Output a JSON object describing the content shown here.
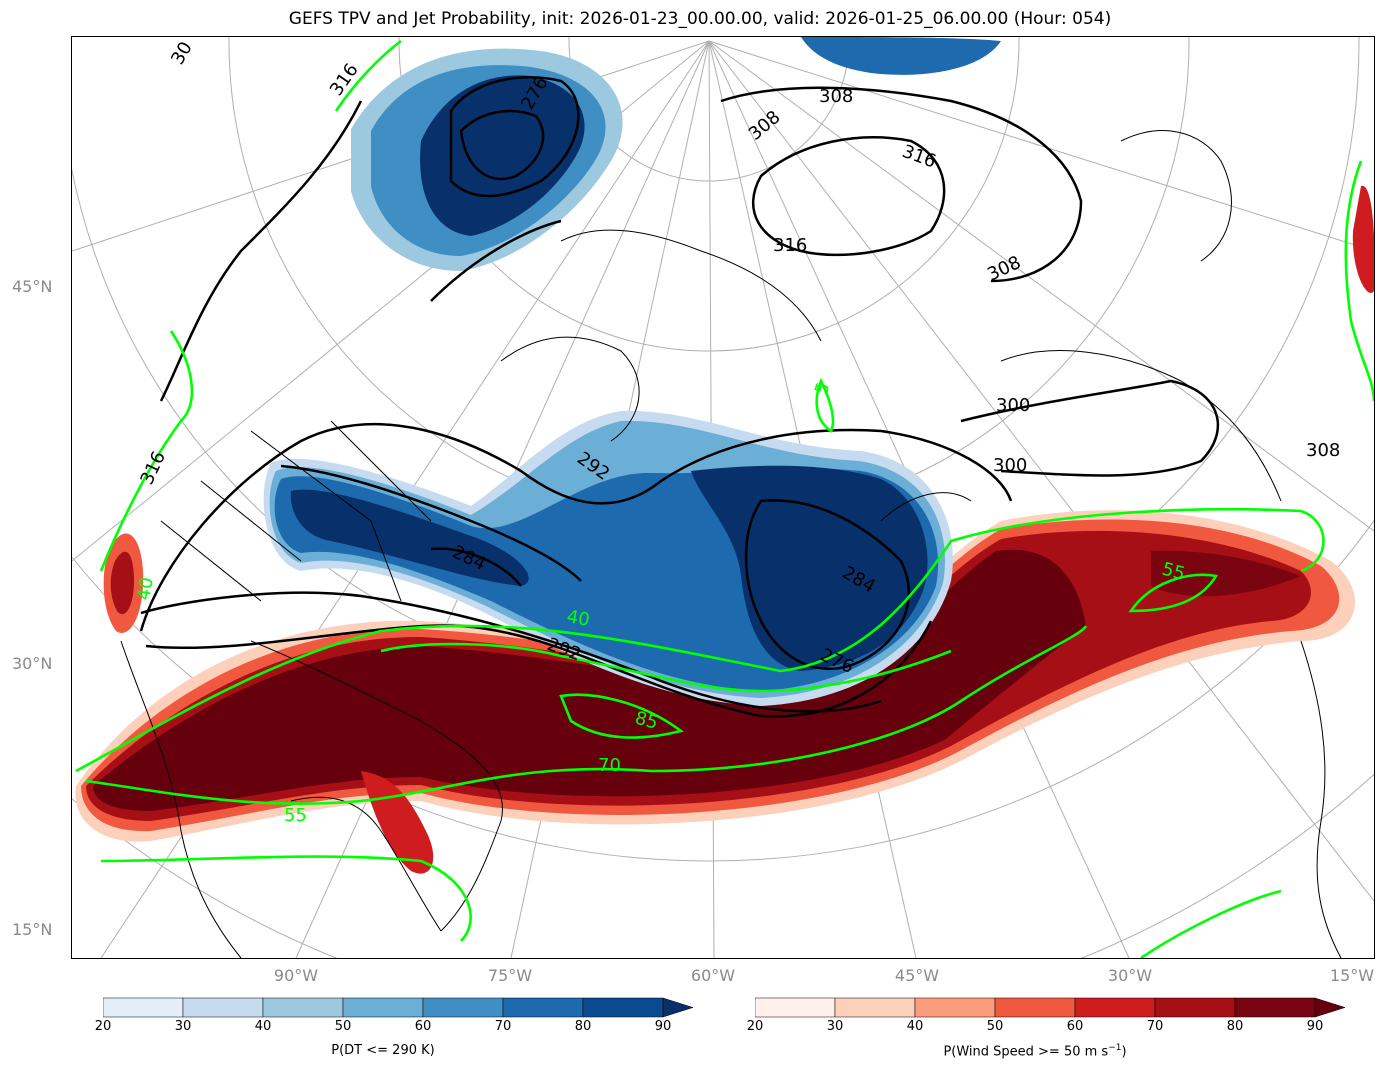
{
  "title": "GEFS TPV and Jet Probability, init: 2026-01-23_00.00.00, valid: 2026-01-25_06.00.00 (Hour: 054)",
  "latitude_labels": [
    "45°N",
    "30°N",
    "15°N"
  ],
  "longitude_labels": [
    "90°W",
    "75°W",
    "60°W",
    "45°W",
    "30°W",
    "15°W"
  ],
  "theta_contour_labels": [
    "316",
    "308",
    "316",
    "316",
    "308",
    "308",
    "300",
    "300",
    "308",
    "284",
    "276",
    "284",
    "292",
    "276",
    "292",
    "316",
    "30"
  ],
  "jet_contour_labels": [
    "40",
    "85",
    "70",
    "55",
    "55",
    "40",
    "5"
  ],
  "colorbar_tpv": {
    "label": "P(DT <= 290 K)",
    "ticks": [
      "20",
      "30",
      "40",
      "50",
      "60",
      "70",
      "80",
      "90"
    ],
    "colors": [
      "#e3eef8",
      "#c6dbef",
      "#9dc9e0",
      "#6baed6",
      "#3f8fc5",
      "#1d6aaf",
      "#0a4a90"
    ],
    "extend_color": "#08306b"
  },
  "colorbar_jet": {
    "label_text": "P(Wind Speed >= 50 m s",
    "label_sup": "−1",
    "label_close": ")",
    "ticks": [
      "20",
      "30",
      "40",
      "50",
      "60",
      "70",
      "80",
      "90"
    ],
    "colors": [
      "#fff0eb",
      "#fdd0bc",
      "#fc9c7d",
      "#f0593f",
      "#cf1c1f",
      "#a50f15",
      "#7a0510"
    ],
    "extend_color": "#67000d"
  },
  "colors": {
    "jet_contour": "#00ff00",
    "theta_contour": "#000000",
    "graticule": "#b0b0b0"
  }
}
